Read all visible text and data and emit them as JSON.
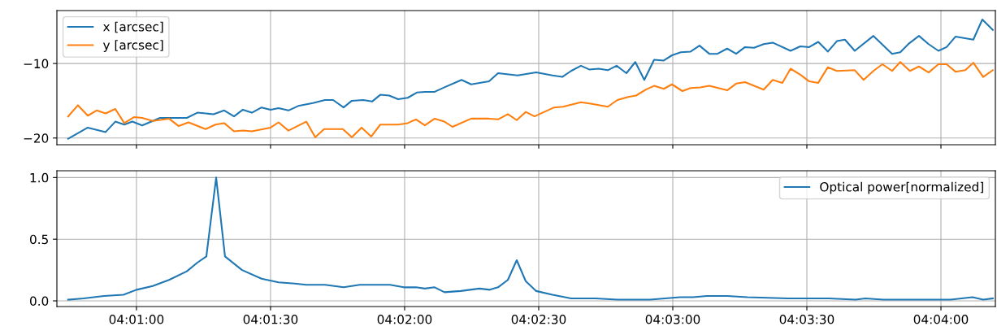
{
  "chart_data": [
    {
      "type": "line",
      "xlim": [
        4.01172,
        4.07005
      ],
      "ylim": [
        -20.9,
        -2.9
      ],
      "yticks": [
        {
          "value": -20,
          "label": "−20"
        },
        {
          "value": -10,
          "label": "−10"
        }
      ],
      "xticks": [
        {
          "value": 4.016667,
          "label": null
        },
        {
          "value": 4.025,
          "label": null
        },
        {
          "value": 4.033333,
          "label": null
        },
        {
          "value": 4.041667,
          "label": null
        },
        {
          "value": 4.05,
          "label": null
        },
        {
          "value": 4.058333,
          "label": null
        },
        {
          "value": 4.066667,
          "label": null
        }
      ],
      "tick_labels": "y",
      "grid": true,
      "legend": "top left",
      "series": [
        {
          "name": "x [arcsec]",
          "color": "#1f77b4",
          "x": [
            4.01242,
            4.01364,
            4.01475,
            4.01535,
            4.01591,
            4.01641,
            4.01702,
            4.01813,
            4.0198,
            4.02045,
            4.02146,
            4.02212,
            4.02273,
            4.02328,
            4.02384,
            4.02444,
            4.025,
            4.0255,
            4.02611,
            4.02672,
            4.02763,
            4.02838,
            4.02889,
            4.02954,
            4.03005,
            4.03076,
            4.03131,
            4.03182,
            4.03237,
            4.03293,
            4.03353,
            4.03409,
            4.03459,
            4.0352,
            4.03581,
            4.03687,
            4.03747,
            4.03858,
            4.03914,
            4.04035,
            4.04151,
            4.04252,
            4.04313,
            4.04368,
            4.04429,
            4.0448,
            4.0454,
            4.04596,
            4.04651,
            4.04712,
            4.04767,
            4.04823,
            4.04884,
            4.04944,
            4.04995,
            4.0505,
            4.05111,
            4.05166,
            4.05227,
            4.05278,
            4.05338,
            4.05394,
            4.05449,
            4.05505,
            4.05565,
            4.05621,
            4.05732,
            4.05793,
            4.05848,
            4.05904,
            4.05964,
            4.0602,
            4.0607,
            4.06131,
            4.06247,
            4.06363,
            4.06414,
            4.06469,
            4.0653,
            4.0659,
            4.06651,
            4.06702,
            4.06757,
            4.06868,
            4.06924,
            4.06989
          ],
          "values": [
            -20.1,
            -18.6,
            -19.2,
            -17.8,
            -18.2,
            -17.8,
            -18.3,
            -17.3,
            -17.3,
            -16.6,
            -16.8,
            -16.3,
            -17.1,
            -16.2,
            -16.6,
            -15.9,
            -16.2,
            -16.0,
            -16.3,
            -15.7,
            -15.3,
            -14.9,
            -14.9,
            -15.9,
            -15.0,
            -14.9,
            -15.1,
            -14.2,
            -14.3,
            -14.8,
            -14.6,
            -13.9,
            -13.8,
            -13.8,
            -13.2,
            -12.2,
            -12.8,
            -12.4,
            -11.3,
            -11.6,
            -11.2,
            -11.6,
            -11.8,
            -11.0,
            -10.3,
            -10.8,
            -10.7,
            -10.9,
            -10.3,
            -11.3,
            -9.8,
            -12.2,
            -9.5,
            -9.6,
            -8.9,
            -8.5,
            -8.4,
            -7.6,
            -8.7,
            -8.7,
            -8.0,
            -8.7,
            -7.8,
            -7.9,
            -7.4,
            -7.2,
            -8.3,
            -7.7,
            -7.8,
            -7.1,
            -8.4,
            -7.0,
            -6.8,
            -8.3,
            -6.3,
            -8.7,
            -8.5,
            -7.3,
            -6.3,
            -7.4,
            -8.3,
            -7.8,
            -6.4,
            -6.8,
            -4.1,
            -5.5
          ]
        },
        {
          "name": "y [arcsec]",
          "color": "#ff7f0e",
          "x": [
            4.01242,
            4.01303,
            4.01364,
            4.01419,
            4.01475,
            4.01535,
            4.01591,
            4.01651,
            4.01702,
            4.01768,
            4.01869,
            4.01929,
            4.0199,
            4.02096,
            4.02157,
            4.02212,
            4.02273,
            4.02328,
            4.02384,
            4.025,
            4.0255,
            4.02611,
            4.02722,
            4.02778,
            4.02833,
            4.02949,
            4.03005,
            4.03066,
            4.03126,
            4.03182,
            4.03293,
            4.03353,
            4.03404,
            4.03459,
            4.0352,
            4.03581,
            4.03631,
            4.03747,
            4.03858,
            4.03914,
            4.03975,
            4.0403,
            4.04086,
            4.04141,
            4.04262,
            4.04318,
            4.04429,
            4.0449,
            4.04596,
            4.04656,
            4.04722,
            4.04772,
            4.04833,
            4.04884,
            4.04944,
            4.04995,
            4.0506,
            4.05111,
            4.05171,
            4.05227,
            4.05338,
            4.05394,
            4.05449,
            4.05565,
            4.05621,
            4.05681,
            4.05732,
            4.05793,
            4.05848,
            4.05904,
            4.05964,
            4.0602,
            4.06131,
            4.06186,
            4.06247,
            4.06303,
            4.06363,
            4.06414,
            4.06474,
            4.0653,
            4.0659,
            4.06651,
            4.06702,
            4.06757,
            4.06818,
            4.06868,
            4.06929,
            4.06989
          ],
          "values": [
            -17.1,
            -15.6,
            -17.0,
            -16.3,
            -16.7,
            -16.1,
            -18.0,
            -17.2,
            -17.3,
            -17.7,
            -17.4,
            -18.4,
            -17.9,
            -18.8,
            -18.2,
            -18.0,
            -19.1,
            -19.0,
            -19.1,
            -18.6,
            -17.9,
            -19.0,
            -17.8,
            -19.9,
            -18.8,
            -18.8,
            -19.9,
            -18.6,
            -19.8,
            -18.2,
            -18.2,
            -18.0,
            -17.5,
            -18.3,
            -17.4,
            -17.8,
            -18.5,
            -17.4,
            -17.4,
            -17.5,
            -16.8,
            -17.6,
            -16.5,
            -17.1,
            -15.9,
            -15.8,
            -15.2,
            -15.4,
            -15.8,
            -14.9,
            -14.5,
            -14.3,
            -13.5,
            -13.0,
            -13.4,
            -12.8,
            -13.7,
            -13.3,
            -13.2,
            -13.0,
            -13.6,
            -12.7,
            -12.5,
            -13.5,
            -12.2,
            -12.6,
            -10.7,
            -11.5,
            -12.4,
            -12.6,
            -10.5,
            -11.0,
            -10.9,
            -12.2,
            -11.0,
            -10.1,
            -11.0,
            -9.8,
            -11.0,
            -10.4,
            -11.2,
            -10.1,
            -10.1,
            -11.1,
            -10.9,
            -9.9,
            -11.8,
            -10.9
          ]
        }
      ]
    },
    {
      "type": "line",
      "xlim": [
        4.01172,
        4.07005
      ],
      "ylim": [
        -0.046,
        1.055
      ],
      "yticks": [
        {
          "value": 0,
          "label": "0.0"
        },
        {
          "value": 0.5,
          "label": "0.5"
        },
        {
          "value": 1,
          "label": "1.0"
        }
      ],
      "xticks": [
        {
          "value": 4.016667,
          "label": "04:01:00"
        },
        {
          "value": 4.025,
          "label": "04:01:30"
        },
        {
          "value": 4.033333,
          "label": "04:02:00"
        },
        {
          "value": 4.041667,
          "label": "04:02:30"
        },
        {
          "value": 4.05,
          "label": "04:03:00"
        },
        {
          "value": 4.058333,
          "label": "04:03:30"
        },
        {
          "value": 4.066667,
          "label": "04:04:00"
        }
      ],
      "grid": true,
      "legend": "top right",
      "series": [
        {
          "name": "Optical power[normalized]",
          "color": "#1f77b4",
          "x": [
            4.01242,
            4.01338,
            4.01465,
            4.01586,
            4.01667,
            4.01768,
            4.01869,
            4.0198,
            4.02045,
            4.02101,
            4.02162,
            4.02217,
            4.02323,
            4.02444,
            4.0255,
            4.02651,
            4.02722,
            4.02838,
            4.02954,
            4.03055,
            4.03182,
            4.03242,
            4.03328,
            4.03404,
            4.03459,
            4.0352,
            4.03581,
            4.03682,
            4.03798,
            4.03863,
            4.03914,
            4.03975,
            4.0403,
            4.04086,
            4.04151,
            4.04252,
            4.04368,
            4.0452,
            4.04656,
            4.04858,
            4.05045,
            4.05126,
            4.05212,
            4.05338,
            4.05464,
            4.05717,
            4.05969,
            4.06136,
            4.06197,
            4.06308,
            4.06727,
            4.06863,
            4.06929,
            4.06989
          ],
          "values": [
            0.01,
            0.02,
            0.04,
            0.05,
            0.09,
            0.12,
            0.17,
            0.24,
            0.31,
            0.36,
            1.0,
            0.36,
            0.25,
            0.18,
            0.15,
            0.14,
            0.13,
            0.13,
            0.11,
            0.13,
            0.13,
            0.13,
            0.11,
            0.11,
            0.1,
            0.11,
            0.07,
            0.08,
            0.1,
            0.09,
            0.11,
            0.17,
            0.33,
            0.16,
            0.08,
            0.05,
            0.02,
            0.02,
            0.01,
            0.01,
            0.03,
            0.03,
            0.04,
            0.04,
            0.03,
            0.02,
            0.02,
            0.01,
            0.02,
            0.01,
            0.01,
            0.03,
            0.01,
            0.02
          ]
        }
      ]
    }
  ]
}
